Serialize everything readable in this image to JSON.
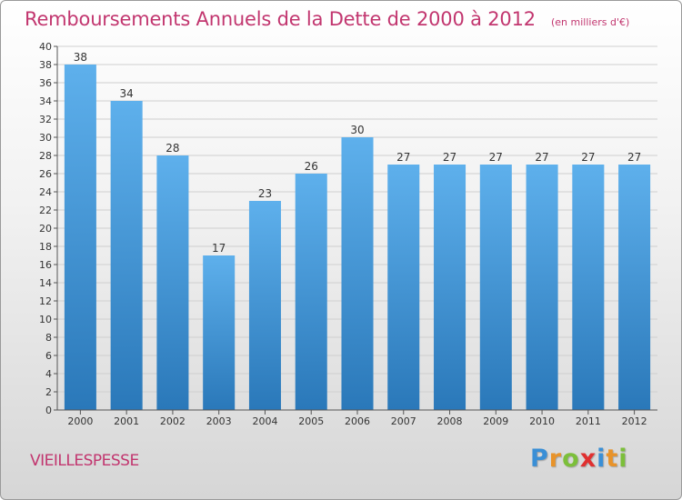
{
  "chart_data": {
    "type": "bar",
    "title": "Remboursements Annuels de la Dette de 2000 à 2012",
    "subtitle": "(en milliers d'€)",
    "categories": [
      "2000",
      "2001",
      "2002",
      "2003",
      "2004",
      "2005",
      "2006",
      "2007",
      "2008",
      "2009",
      "2010",
      "2011",
      "2012"
    ],
    "values": [
      38,
      34,
      28,
      17,
      23,
      26,
      30,
      27,
      27,
      27,
      27,
      27,
      27
    ],
    "ylim": [
      0,
      40
    ],
    "yticks": [
      0,
      2,
      4,
      6,
      8,
      10,
      12,
      14,
      16,
      18,
      20,
      22,
      24,
      26,
      28,
      30,
      32,
      34,
      36,
      38,
      40
    ],
    "grid": true,
    "legend": "none",
    "bar_color_top": "#5eb0ec",
    "bar_color_bottom": "#2a78b9"
  },
  "footer": {
    "commune": "VIEILLESPESSE",
    "logo_letters": [
      {
        "ch": "P",
        "color": "#3a8fd6"
      },
      {
        "ch": "r",
        "color": "#e8932a"
      },
      {
        "ch": "o",
        "color": "#7cbf3a"
      },
      {
        "ch": "x",
        "color": "#e03030"
      },
      {
        "ch": "i",
        "color": "#3a8fd6"
      },
      {
        "ch": "t",
        "color": "#e8932a"
      },
      {
        "ch": "i",
        "color": "#7cbf3a"
      }
    ]
  },
  "colors": {
    "accent": "#c2366f",
    "grid": "#cfcfcf",
    "axis": "#555555"
  }
}
